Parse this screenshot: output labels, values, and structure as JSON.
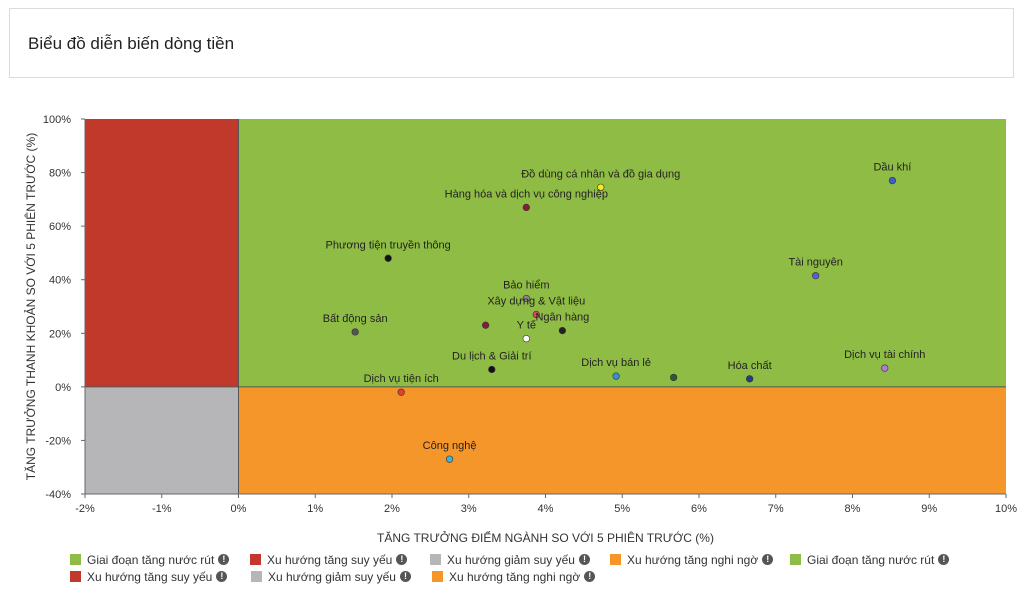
{
  "header": {
    "title": "Biểu đồ diễn biến dòng tiền"
  },
  "chart_data": {
    "type": "scatter",
    "title": "",
    "xlabel": "TĂNG TRƯỞNG ĐIỂM NGÀNH SO VỚI 5 PHIÊN TRƯỚC (%)",
    "ylabel": "TĂNG TRƯỞNG THANH KHOẢN SO VỚI 5 PHIÊN TRƯỚC (%)",
    "xlim": [
      -2,
      10
    ],
    "ylim": [
      -40,
      100
    ],
    "x_ticks": [
      -2,
      -1,
      0,
      1,
      2,
      3,
      4,
      5,
      6,
      7,
      8,
      9,
      10
    ],
    "x_tick_labels": [
      "-2%",
      "-1%",
      "0%",
      "1%",
      "2%",
      "3%",
      "4%",
      "5%",
      "6%",
      "7%",
      "8%",
      "9%",
      "10%"
    ],
    "y_ticks": [
      -40,
      -20,
      0,
      20,
      40,
      60,
      80,
      100
    ],
    "y_tick_labels": [
      "-40%",
      "-20%",
      "0%",
      "20%",
      "40%",
      "60%",
      "80%",
      "100%"
    ],
    "grid": false,
    "quadrants": [
      {
        "name": "top-left",
        "color": "#c0392b"
      },
      {
        "name": "top-right",
        "color": "#8fbc45"
      },
      {
        "name": "bottom-left",
        "color": "#b6b6b9"
      },
      {
        "name": "bottom-right",
        "color": "#f5962a"
      }
    ],
    "points": [
      {
        "label": "Dầu khí",
        "x": 8.52,
        "y": 77,
        "color": "#3a5fcd"
      },
      {
        "label": "Đồ dùng cá nhân và đồ gia dụng",
        "x": 4.72,
        "y": 74.5,
        "color": "#f5e91e"
      },
      {
        "label": "Hàng hóa và dịch vụ công nghiệp",
        "x": 3.75,
        "y": 67,
        "color": "#8b1a3a"
      },
      {
        "label": "Phương tiện truyền thông",
        "x": 1.95,
        "y": 48,
        "color": "#111111"
      },
      {
        "label": "Tài nguyên",
        "x": 7.52,
        "y": 41.5,
        "color": "#5b5fd6"
      },
      {
        "label": "Bảo hiểm",
        "x": 3.75,
        "y": 33,
        "color": "#888888"
      },
      {
        "label": "Xây dựng & Vật liệu",
        "x": 3.88,
        "y": 27,
        "color": "#d64a5a"
      },
      {
        "label": "Bất động sản",
        "x": 1.52,
        "y": 20.5,
        "color": "#555555"
      },
      {
        "label": "",
        "x": 3.22,
        "y": 23,
        "color": "#8b1a3a"
      },
      {
        "label": "Ngân hàng",
        "x": 4.22,
        "y": 21,
        "color": "#222222"
      },
      {
        "label": "Y tế",
        "x": 3.75,
        "y": 18,
        "color": "#ffffff"
      },
      {
        "label": "Du lịch & Giải trí",
        "x": 3.3,
        "y": 6.5,
        "color": "#111111"
      },
      {
        "label": "Dịch vụ bán lẻ",
        "x": 4.92,
        "y": 4,
        "color": "#3b8fd0"
      },
      {
        "label": "",
        "x": 5.67,
        "y": 3.5,
        "color": "#2f5a2f"
      },
      {
        "label": "Hóa chất",
        "x": 6.66,
        "y": 3,
        "color": "#2a3a8a"
      },
      {
        "label": "Dịch vụ tài chính",
        "x": 8.42,
        "y": 7,
        "color": "#b07ad6"
      },
      {
        "label": "Dịch vụ tiện ích",
        "x": 2.12,
        "y": -2,
        "color": "#e04030"
      },
      {
        "label": "Công nghệ",
        "x": 2.75,
        "y": -27,
        "color": "#3bb3d8"
      }
    ],
    "legend": [
      {
        "label": "Giai đoạn tăng nước rút",
        "color": "#8fbc45"
      },
      {
        "label": "Xu hướng tăng suy yếu",
        "color": "#c0392b"
      },
      {
        "label": "Xu hướng giảm suy yếu",
        "color": "#b6b6b9"
      },
      {
        "label": "Xu hướng tăng nghi ngờ",
        "color": "#f5962a"
      },
      {
        "label": "Giai đoạn tăng nước rút",
        "color": "#8fbc45"
      },
      {
        "label": "Xu hướng tăng suy yếu",
        "color": "#c0392b"
      },
      {
        "label": "Xu hướng giảm suy yếu",
        "color": "#b6b6b9"
      },
      {
        "label": "Xu hướng tăng nghi ngờ",
        "color": "#f5962a"
      }
    ],
    "legend_info_glyph": "!"
  }
}
